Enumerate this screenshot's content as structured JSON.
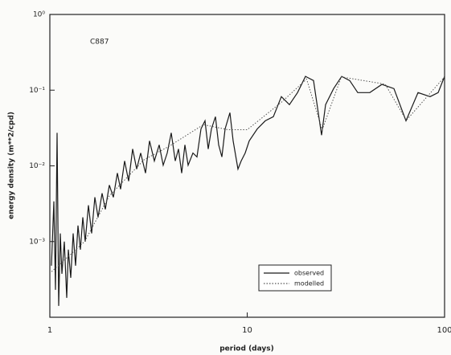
{
  "chart_data": {
    "type": "line",
    "annotation": "C887",
    "xlabel": "period (days)",
    "ylabel": "energy density (m**2/cpd)",
    "log_x": true,
    "log_y": true,
    "xlim": [
      1,
      100
    ],
    "xticks": [
      1,
      10,
      100
    ],
    "ylim": [
      0.0001,
      1
    ],
    "yticks": [
      {
        "value": 1,
        "label": "10⁰"
      },
      {
        "value": 0.1,
        "label": "10⁻¹"
      },
      {
        "value": 0.01,
        "label": "10⁻²"
      },
      {
        "value": 0.001,
        "label": "10⁻³"
      }
    ],
    "legend": "lower right",
    "series": [
      {
        "name": "observed",
        "color": "#1a1a1a",
        "dash": false,
        "x": [
          1.019,
          1.048,
          1.068,
          1.088,
          1.109,
          1.13,
          1.151,
          1.184,
          1.218,
          1.241,
          1.276,
          1.313,
          1.35,
          1.389,
          1.428,
          1.469,
          1.511,
          1.569,
          1.628,
          1.691,
          1.756,
          1.84,
          1.91,
          2.002,
          2.098,
          2.199,
          2.283,
          2.393,
          2.507,
          2.628,
          2.754,
          2.886,
          3.053,
          3.199,
          3.384,
          3.581,
          3.752,
          3.933,
          4.122,
          4.32,
          4.485,
          4.656,
          4.834,
          5.018,
          5.31,
          5.565,
          5.833,
          6.112,
          6.347,
          6.59,
          6.906,
          7.17,
          7.444,
          7.727,
          8.174,
          8.486,
          8.978,
          9.322,
          9.768,
          10.24,
          11.24,
          12.35,
          13.57,
          14.9,
          16.36,
          17.98,
          19.74,
          21.68,
          23.82,
          24.95,
          27.41,
          30.1,
          33.06,
          36.33,
          41.81,
          48.13,
          55.39,
          63.75,
          73.38,
          84.47,
          92.76,
          100
        ],
        "values": [
          0.00048,
          0.0034,
          0.00023,
          0.0273,
          0.000141,
          0.00128,
          0.000375,
          0.001,
          0.00018,
          0.000783,
          0.000332,
          0.00128,
          0.00048,
          0.00163,
          0.000783,
          0.00209,
          0.001,
          0.00301,
          0.00128,
          0.00385,
          0.00209,
          0.00435,
          0.00267,
          0.00556,
          0.00385,
          0.00802,
          0.00491,
          0.0116,
          0.00628,
          0.0167,
          0.00906,
          0.0148,
          0.00802,
          0.0214,
          0.0116,
          0.0189,
          0.0102,
          0.0148,
          0.0273,
          0.0116,
          0.0167,
          0.00802,
          0.0189,
          0.0102,
          0.0148,
          0.0131,
          0.0308,
          0.0394,
          0.0167,
          0.0308,
          0.0446,
          0.0189,
          0.0131,
          0.0308,
          0.0504,
          0.0214,
          0.00906,
          0.0116,
          0.0148,
          0.0214,
          0.0308,
          0.0394,
          0.0446,
          0.0822,
          0.0644,
          0.0929,
          0.152,
          0.134,
          0.0254,
          0.0644,
          0.105,
          0.152,
          0.134,
          0.0929,
          0.0929,
          0.119,
          0.105,
          0.0394,
          0.0929,
          0.0822,
          0.0929,
          0.152
        ]
      },
      {
        "name": "modelled",
        "color": "#555555",
        "dash": true,
        "x": [
          1.02,
          1.5,
          2,
          3,
          4,
          6,
          8,
          10,
          15,
          20,
          24,
          30,
          50,
          64,
          100
        ],
        "values": [
          0.0004,
          0.001,
          0.004,
          0.012,
          0.018,
          0.035,
          0.03,
          0.03,
          0.07,
          0.14,
          0.03,
          0.15,
          0.12,
          0.04,
          0.15
        ]
      }
    ]
  }
}
